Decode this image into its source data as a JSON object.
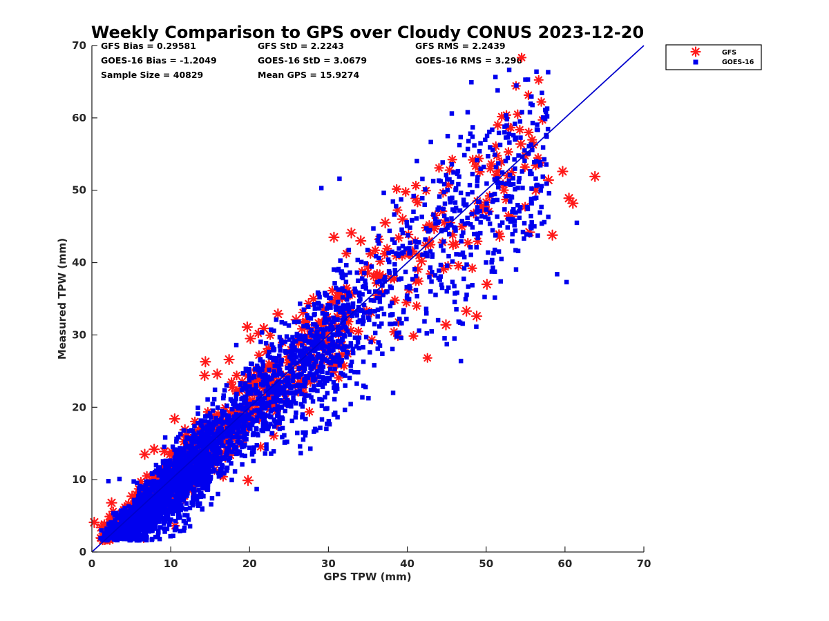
{
  "chart_data": {
    "type": "scatter",
    "title": "Weekly Comparison to GPS over Cloudy CONUS 2023-12-20",
    "xlabel": "GPS TPW (mm)",
    "ylabel": "Measured TPW (mm)",
    "xlim": [
      0,
      70
    ],
    "ylim": [
      0,
      70
    ],
    "xticks": [
      0,
      10,
      20,
      30,
      40,
      50,
      60,
      70
    ],
    "yticks": [
      0,
      10,
      20,
      30,
      40,
      50,
      60,
      70
    ],
    "grid": false,
    "legend_position": "outside-top-right",
    "reference_line": {
      "x": [
        0,
        70
      ],
      "y": [
        0,
        70
      ],
      "color": "#0000cc"
    },
    "stats": [
      "GFS Bias = 0.29581",
      "GFS StD = 2.2243",
      "GFS RMS = 2.2439",
      "GOES-16 Bias = -1.2049",
      "GOES-16 StD = 3.0679",
      "GOES-16 RMS = 3.296",
      "Sample Size = 40829",
      "Mean GPS = 15.9274"
    ],
    "series": [
      {
        "name": "GFS",
        "marker": "asterisk",
        "color": "#ff1a1a",
        "bias": 0.29581,
        "std": 2.2243,
        "x": [
          0.3,
          1.2,
          2.5,
          3.8,
          5.1,
          6.7,
          7.9,
          9.2,
          10.5,
          11.8,
          13.1,
          14.4,
          14.3,
          15.9,
          17.4,
          17.8,
          19.7,
          20.1,
          21.8,
          23.6,
          25.9,
          27.4,
          28.1,
          30.7,
          32.9,
          34.1,
          36.5,
          37.2,
          39.4,
          41.8,
          43.4,
          44.9,
          45.8,
          47.5,
          48.8,
          50.1,
          51.7,
          53.2,
          54.4,
          55.5,
          56.3,
          57.9,
          58.4,
          59.7,
          60.5,
          61.0,
          63.8,
          19.8,
          5.9,
          26.1
        ],
        "y": [
          4.1,
          3.4,
          6.8,
          5.3,
          7.7,
          13.5,
          14.2,
          13.9,
          18.4,
          16.9,
          16.2,
          26.3,
          24.4,
          24.6,
          26.6,
          22.8,
          31.1,
          29.5,
          30.9,
          32.9,
          32.1,
          29.8,
          35.0,
          43.5,
          44.1,
          43.0,
          38.3,
          45.5,
          46.0,
          40.2,
          44.7,
          31.4,
          42.5,
          33.3,
          32.6,
          37.0,
          43.6,
          46.4,
          56.4,
          44.2,
          50.0,
          51.4,
          43.8,
          52.6,
          48.9,
          48.2,
          51.9,
          9.9,
          3.9,
          23.3
        ]
      },
      {
        "name": "GOES-16",
        "marker": "square",
        "color": "#0000ee",
        "bias": -1.2049,
        "std": 3.0679,
        "x": [
          2.1,
          3.5,
          1.2,
          4.8,
          29.1,
          31.4,
          35.7,
          41.9,
          46.8,
          48.3,
          51.1,
          52.9,
          54.3,
          55.9,
          60.2,
          61.5,
          59.0,
          40.8,
          45.6,
          38.2
        ],
        "y": [
          9.8,
          10.1,
          3.0,
          2.7,
          50.3,
          51.6,
          44.7,
          48.9,
          26.4,
          58.7,
          54.9,
          57.8,
          59.5,
          59.3,
          37.3,
          45.5,
          38.4,
          49.2,
          46.1,
          22.0
        ]
      }
    ]
  }
}
